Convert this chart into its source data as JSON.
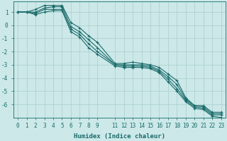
{
  "xlabel": "Humidex (Indice chaleur)",
  "bg_color": "#cce8e8",
  "line_color": "#1a6b6b",
  "grid_color": "#aacece",
  "xlim": [
    -0.5,
    23.5
  ],
  "ylim": [
    -7.0,
    1.8
  ],
  "xtick_positions": [
    0,
    1,
    2,
    3,
    4,
    5,
    6,
    7,
    8,
    9,
    11,
    12,
    13,
    14,
    15,
    16,
    17,
    18,
    19,
    20,
    21,
    22,
    23
  ],
  "xtick_labels": [
    "0",
    "1",
    "2",
    "3",
    "4",
    "5",
    "6",
    "7",
    "8",
    "9",
    "11",
    "12",
    "13",
    "14",
    "15",
    "16",
    "17",
    "18",
    "19",
    "20",
    "21",
    "22",
    "23"
  ],
  "ytick_positions": [
    1,
    0,
    -1,
    -2,
    -3,
    -4,
    -5,
    -6
  ],
  "ytick_labels": [
    "1",
    "0",
    "-1",
    "-2",
    "-3",
    "-4",
    "-5",
    "-6"
  ],
  "lines": [
    {
      "x": [
        0,
        1,
        2,
        3,
        4,
        5,
        6,
        7,
        8,
        9,
        11,
        12,
        13,
        14,
        15,
        16,
        17,
        18,
        19,
        20,
        21,
        22,
        23
      ],
      "y": [
        1.0,
        1.0,
        1.2,
        1.5,
        1.5,
        1.5,
        0.2,
        -0.2,
        -0.8,
        -1.3,
        -2.9,
        -2.9,
        -2.8,
        -2.9,
        -3.0,
        -3.2,
        -3.7,
        -4.2,
        -5.5,
        -6.1,
        -6.1,
        -6.6,
        -6.6
      ]
    },
    {
      "x": [
        0,
        1,
        2,
        3,
        4,
        5,
        6,
        7,
        8,
        9,
        11,
        12,
        13,
        14,
        15,
        16,
        17,
        18,
        19,
        20,
        21,
        22,
        23
      ],
      "y": [
        1.0,
        1.0,
        1.0,
        1.3,
        1.4,
        1.4,
        -0.1,
        -0.5,
        -1.1,
        -1.7,
        -3.0,
        -3.0,
        -3.0,
        -3.0,
        -3.1,
        -3.4,
        -3.9,
        -4.5,
        -5.6,
        -6.1,
        -6.2,
        -6.7,
        -6.7
      ]
    },
    {
      "x": [
        0,
        1,
        2,
        3,
        4,
        5,
        6,
        7,
        8,
        9,
        11,
        12,
        13,
        14,
        15,
        16,
        17,
        18,
        19,
        20,
        21,
        22,
        23
      ],
      "y": [
        1.0,
        1.0,
        0.9,
        1.2,
        1.2,
        1.2,
        -0.3,
        -0.7,
        -1.4,
        -2.0,
        -3.0,
        -3.1,
        -3.1,
        -3.1,
        -3.2,
        -3.5,
        -4.1,
        -4.8,
        -5.7,
        -6.2,
        -6.3,
        -6.8,
        -6.8
      ]
    },
    {
      "x": [
        0,
        1,
        2,
        3,
        4,
        5,
        6,
        7,
        8,
        9,
        11,
        12,
        13,
        14,
        15,
        16,
        17,
        18,
        19,
        20,
        21,
        22,
        23
      ],
      "y": [
        1.0,
        1.0,
        0.8,
        1.0,
        1.1,
        1.1,
        -0.5,
        -0.9,
        -1.7,
        -2.2,
        -3.1,
        -3.2,
        -3.2,
        -3.2,
        -3.3,
        -3.6,
        -4.3,
        -5.0,
        -5.8,
        -6.3,
        -6.4,
        -6.9,
        -7.0
      ]
    }
  ],
  "xlabel_fontsize": 6.5,
  "tick_fontsize": 5.5,
  "linewidth": 0.8,
  "markersize": 3.0,
  "markeredgewidth": 0.8
}
